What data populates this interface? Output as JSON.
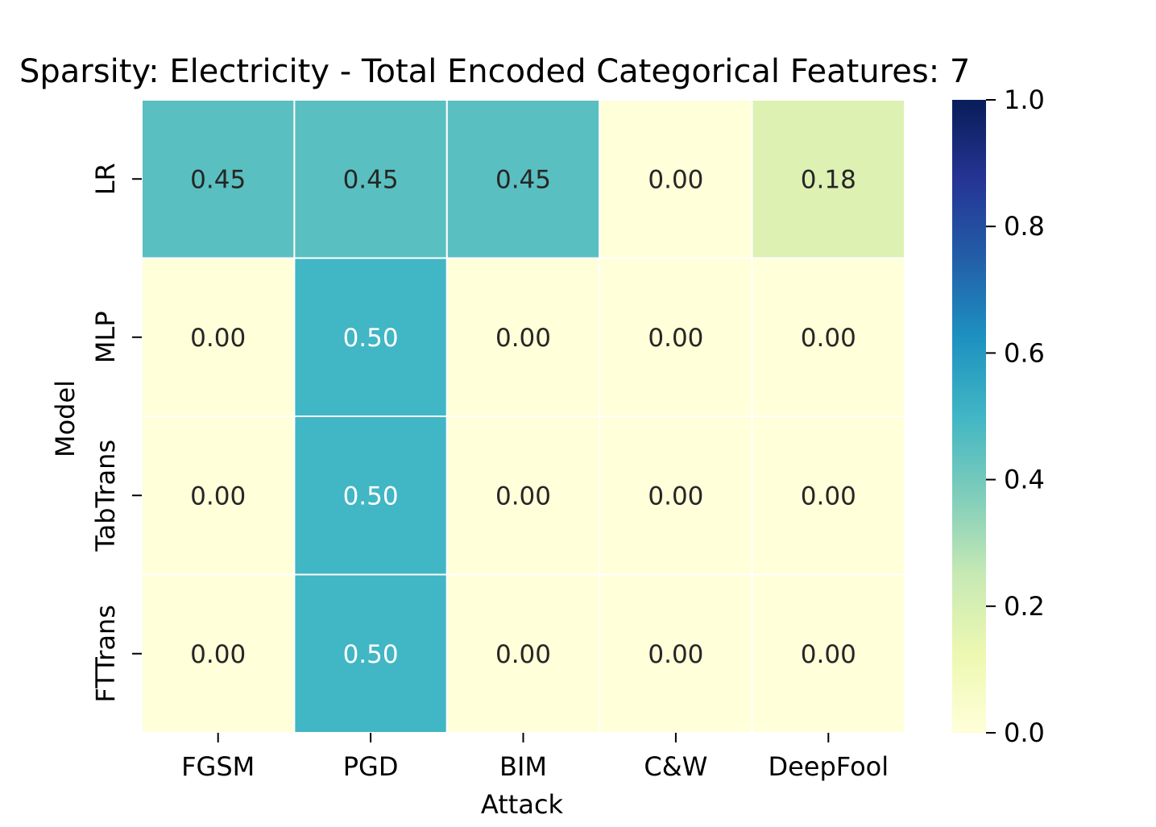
{
  "chart_data": {
    "type": "heatmap",
    "title": "Sparsity: Electricity - Total Encoded Categorical Features: 7",
    "xlabel": "Attack",
    "ylabel": "Model",
    "x_categories": [
      "FGSM",
      "PGD",
      "BIM",
      "C&W",
      "DeepFool"
    ],
    "y_categories": [
      "LR",
      "MLP",
      "TabTrans",
      "FTTrans"
    ],
    "values": [
      [
        0.45,
        0.45,
        0.45,
        0.0,
        0.18
      ],
      [
        0.0,
        0.5,
        0.0,
        0.0,
        0.0
      ],
      [
        0.0,
        0.5,
        0.0,
        0.0,
        0.0
      ],
      [
        0.0,
        0.5,
        0.0,
        0.0,
        0.0
      ]
    ],
    "value_format": "0.00",
    "colormap": "YlGnBu",
    "vmin": 0.0,
    "vmax": 1.0,
    "colorbar_ticks": [
      "0.0",
      "0.2",
      "0.4",
      "0.6",
      "0.8",
      "1.0"
    ],
    "colorbar_tick_values": [
      0.0,
      0.2,
      0.4,
      0.6,
      0.8,
      1.0
    ],
    "colorbar_stops": [
      "#ffffd9",
      "#edf8b1",
      "#c7e9b4",
      "#7fcdbb",
      "#41b6c4",
      "#1d91c0",
      "#225ea8",
      "#253494",
      "#081d58"
    ],
    "cell_border_color": "#ffffff"
  }
}
